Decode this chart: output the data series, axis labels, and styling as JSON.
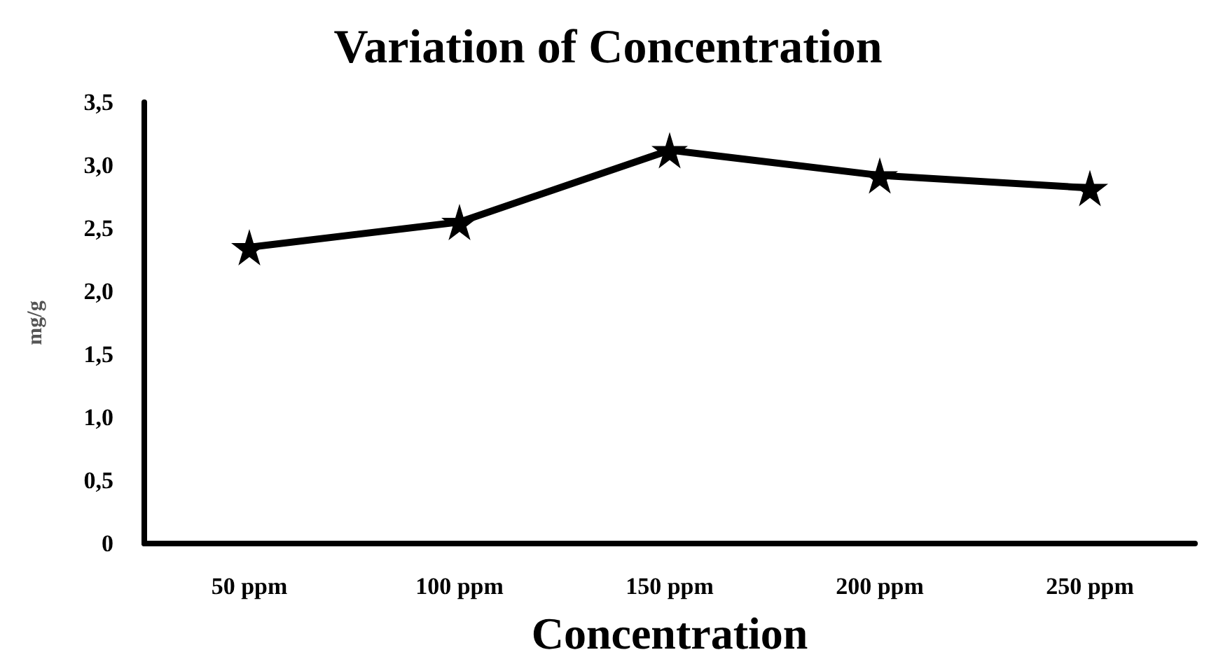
{
  "chart_data": {
    "type": "line",
    "title": "Variation of Concentration",
    "xlabel": "Concentration",
    "ylabel": "mg/g",
    "categories": [
      "50 ppm",
      "100 ppm",
      "150 ppm",
      "200 ppm",
      "250 ppm"
    ],
    "series": [
      {
        "color": "#000000",
        "values": [
          2.35,
          2.55,
          3.12,
          2.92,
          2.82
        ]
      }
    ],
    "ylim": [
      0,
      3.5
    ],
    "yticks": [
      0,
      {
        "value": 0.5,
        "label": "0,5"
      },
      {
        "value": 1,
        "label": "1,0"
      },
      {
        "value": 1.5,
        "label": "1,5"
      },
      {
        "value": 2,
        "label": "2,0"
      },
      {
        "value": 2.5,
        "label": "2,5"
      },
      {
        "value": 3,
        "label": "3,0"
      },
      {
        "value": 3.5,
        "label": "3,5"
      }
    ],
    "grid": false,
    "marker": "star",
    "line_style": "solid"
  }
}
